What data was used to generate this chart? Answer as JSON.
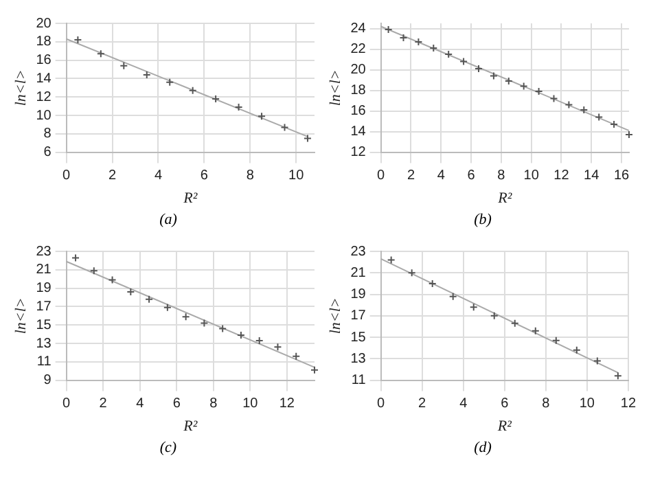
{
  "chart_data": [
    {
      "type": "scatter",
      "xlabel": "R²",
      "ylabel": "ln<l>",
      "annotations": [
        "(a)"
      ],
      "xlim": [
        0,
        10.8
      ],
      "xticks": [
        0,
        2,
        4,
        6,
        8,
        10
      ],
      "ylim": [
        6,
        20
      ],
      "yticks": [
        6,
        8,
        10,
        12,
        14,
        16,
        18,
        20
      ],
      "grid": true,
      "legend": false,
      "series": [
        {
          "color": "#555555",
          "marker": "cross",
          "x": [
            0.5,
            1.5,
            2.5,
            3.5,
            4.5,
            5.5,
            6.5,
            7.5,
            8.5,
            9.5,
            10.5
          ],
          "values": [
            18.2,
            16.7,
            15.4,
            14.4,
            13.6,
            12.7,
            11.8,
            10.9,
            9.9,
            8.7,
            7.5
          ]
        },
        {
          "type": "line",
          "color": "#aaaaaa",
          "x": [
            0,
            10.5
          ],
          "values": [
            18.3,
            7.7
          ]
        }
      ]
    },
    {
      "type": "scatter",
      "xlabel": "R²",
      "ylabel": "ln<l>",
      "annotations": [
        "(b)"
      ],
      "xlim": [
        0,
        16.5
      ],
      "xticks": [
        0,
        2,
        4,
        6,
        8,
        10,
        12,
        14,
        16
      ],
      "ylim": [
        12,
        24.5
      ],
      "yticks": [
        12,
        14,
        16,
        18,
        20,
        22,
        24
      ],
      "grid": true,
      "legend": false,
      "series": [
        {
          "color": "#555555",
          "marker": "cross",
          "x": [
            0.5,
            1.5,
            2.5,
            3.5,
            4.5,
            5.5,
            6.5,
            7.5,
            8.5,
            9.5,
            10.5,
            11.5,
            12.5,
            13.5,
            14.5,
            15.5,
            16.5
          ],
          "values": [
            23.9,
            23.1,
            22.7,
            22.1,
            21.5,
            20.8,
            20.1,
            19.4,
            18.9,
            18.4,
            17.9,
            17.2,
            16.6,
            16.1,
            15.4,
            14.7,
            13.7
          ]
        },
        {
          "type": "line",
          "color": "#aaaaaa",
          "x": [
            0,
            16.5
          ],
          "values": [
            24.2,
            14.1
          ]
        }
      ]
    },
    {
      "type": "scatter",
      "xlabel": "R²",
      "ylabel": "ln<l>",
      "annotations": [
        "(c)"
      ],
      "xlim": [
        0,
        13.5
      ],
      "xticks": [
        0,
        2,
        4,
        6,
        8,
        10,
        12
      ],
      "ylim": [
        9,
        23
      ],
      "yticks": [
        9,
        11,
        13,
        15,
        17,
        19,
        21,
        23
      ],
      "grid": true,
      "legend": false,
      "series": [
        {
          "color": "#555555",
          "marker": "cross",
          "x": [
            0.5,
            1.5,
            2.5,
            3.5,
            4.5,
            5.5,
            6.5,
            7.5,
            8.5,
            9.5,
            10.5,
            11.5,
            12.5,
            13.5
          ],
          "values": [
            22.3,
            20.9,
            19.9,
            18.6,
            17.8,
            16.9,
            15.9,
            15.2,
            14.6,
            13.9,
            13.3,
            12.6,
            11.6,
            10.1
          ]
        },
        {
          "type": "line",
          "color": "#aaaaaa",
          "x": [
            0,
            13.5
          ],
          "values": [
            21.9,
            10.4
          ]
        }
      ]
    },
    {
      "type": "scatter",
      "xlabel": "R²",
      "ylabel": "ln<l>",
      "annotations": [
        "(d)"
      ],
      "xlim": [
        0,
        12
      ],
      "xticks": [
        0,
        2,
        4,
        6,
        8,
        10,
        12
      ],
      "ylim": [
        11,
        23
      ],
      "yticks": [
        11,
        13,
        15,
        17,
        19,
        21,
        23
      ],
      "grid": true,
      "legend": false,
      "series": [
        {
          "color": "#555555",
          "marker": "cross",
          "x": [
            0.5,
            1.5,
            2.5,
            3.5,
            4.5,
            5.5,
            6.5,
            7.5,
            8.5,
            9.5,
            10.5,
            11.5
          ],
          "values": [
            22.2,
            21.0,
            20.0,
            18.8,
            17.8,
            17.0,
            16.3,
            15.6,
            14.7,
            13.8,
            12.8,
            11.4
          ]
        },
        {
          "type": "line",
          "color": "#aaaaaa",
          "x": [
            0,
            11.5
          ],
          "values": [
            22.3,
            11.7
          ]
        }
      ]
    }
  ]
}
